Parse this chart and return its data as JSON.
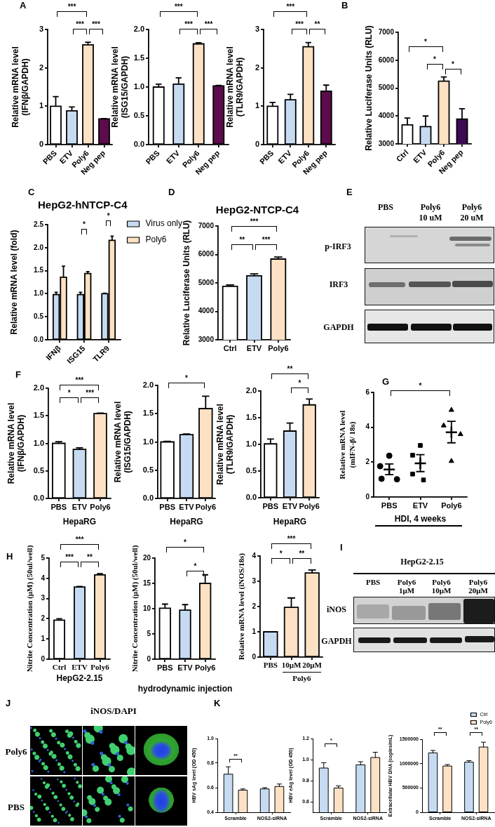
{
  "chart_data": [
    {
      "type": "bar",
      "categories": [
        "PBS",
        "ETV",
        "Poly6",
        "Neg pep"
      ],
      "values": [
        1.0,
        0.88,
        2.6,
        0.67
      ],
      "colors": [
        "#ffffff",
        "#c6dbf2",
        "#fde1c4",
        "#5c0b4c"
      ],
      "errors": [
        [
          1.0,
          1.25
        ],
        [
          0.88,
          0.98
        ],
        [
          2.6,
          2.67
        ],
        [
          0.67,
          0.68
        ]
      ],
      "ylabel": "Relative mRNA level (IFNβ/GAPDH)",
      "ylim": [
        0,
        3
      ],
      "yticks": [
        0,
        1,
        2,
        3
      ],
      "annotations": [
        "A",
        "***",
        "***",
        "***"
      ]
    },
    {
      "type": "bar",
      "categories": [
        "PBS",
        "ETV",
        "Poly6",
        "Neg pep"
      ],
      "values": [
        1.0,
        1.05,
        1.75,
        1.02
      ],
      "colors": [
        "#ffffff",
        "#c6dbf2",
        "#fde1c4",
        "#5c0b4c"
      ],
      "errors": [
        [
          1.0,
          1.05
        ],
        [
          1.05,
          1.16
        ],
        [
          1.75,
          1.77
        ],
        [
          1.02,
          1.03
        ]
      ],
      "ylabel": "Relative mRNA level (ISG15/GAPDH)",
      "ylim": [
        0,
        2
      ],
      "yticks": [
        {
          "value": 0,
          "label": "0.0"
        },
        0.5,
        {
          "value": 1,
          "label": "1.0"
        },
        1.5,
        {
          "value": 2,
          "label": "2.0"
        }
      ],
      "annotations": [
        "***",
        "***",
        "***"
      ]
    },
    {
      "type": "bar",
      "categories": [
        "PBS",
        "ETV",
        "Poly6",
        "Neg pep"
      ],
      "values": [
        1.0,
        1.17,
        2.55,
        1.39
      ],
      "colors": [
        "#ffffff",
        "#c6dbf2",
        "#fde1c4",
        "#5c0b4c"
      ],
      "errors": [
        [
          1.0,
          1.1
        ],
        [
          1.17,
          1.31
        ],
        [
          2.55,
          2.66
        ],
        [
          1.39,
          1.55
        ]
      ],
      "ylabel": "Relative mRNA level (TLR9/GAPDH)",
      "ylim": [
        0,
        3
      ],
      "yticks": [
        0,
        1,
        2,
        3
      ],
      "annotations": [
        "***",
        "***",
        "**"
      ]
    },
    {
      "type": "bar",
      "categories": [
        "Ctrl",
        "ETV",
        "Poly6",
        "Neg pep"
      ],
      "values": [
        3680,
        3620,
        5250,
        3890
      ],
      "colors": [
        "#ffffff",
        "#c6dbf2",
        "#fde1c4",
        "#3d0b54"
      ],
      "errors": [
        [
          3680,
          3930
        ],
        [
          3620,
          4000
        ],
        [
          5250,
          5400
        ],
        [
          3890,
          4260
        ]
      ],
      "ylabel": "Relative Luciferase Units (RLU)",
      "ylim": [
        3000,
        7000
      ],
      "yticks": [
        3000,
        4000,
        5000,
        6000,
        7000
      ],
      "annotations": [
        "B",
        "*",
        "*",
        "*"
      ]
    },
    {
      "type": "bar",
      "title": "HepG2-hNTCP-C4",
      "categories": [
        "IFNβ",
        "ISG15",
        "TLR9"
      ],
      "series": [
        {
          "name": "Virus only",
          "color": "#c6dbf2",
          "values": [
            0.98,
            0.98,
            1.0
          ],
          "errors": [
            [
              0.98,
              1.03
            ],
            [
              0.98,
              1.03
            ],
            [
              1.0,
              1.01
            ]
          ]
        },
        {
          "name": "Poly6",
          "color": "#fde1c4",
          "values": [
            1.36,
            1.44,
            2.16
          ],
          "errors": [
            [
              1.36,
              1.6
            ],
            [
              1.44,
              1.48
            ],
            [
              2.16,
              2.25
            ]
          ]
        }
      ],
      "ylabel": "Relative mRNA level (fold)",
      "ylim": [
        0,
        2.5
      ],
      "yticks": [
        {
          "value": 0,
          "label": "0.0"
        },
        0.5,
        {
          "value": 1,
          "label": "1.0"
        },
        1.5,
        {
          "value": 2,
          "label": "2.0"
        },
        2.5
      ],
      "legend": "top right",
      "annotations": [
        "C",
        "*",
        "*"
      ]
    },
    {
      "type": "bar",
      "title": "HepG2-NTCP-C4",
      "categories": [
        "Ctrl",
        "ETV",
        "Poly6"
      ],
      "values": [
        4880,
        5250,
        5840
      ],
      "colors": [
        "#ffffff",
        "#c6dbf2",
        "#fde1c4"
      ],
      "errors": [
        [
          4880,
          4930
        ],
        [
          5250,
          5320
        ],
        [
          5840,
          5910
        ]
      ],
      "ylabel": "Relative Luciferase Units (RLU)",
      "ylim": [
        3000,
        7000
      ],
      "yticks": [
        3000,
        4000,
        5000,
        6000,
        7000
      ],
      "annotations": [
        "D",
        "***",
        "**",
        "***"
      ]
    },
    {
      "type": "other",
      "annotations": [
        "E",
        "PBS",
        "Poly6 10 uM",
        "Poly6 20 uM",
        "p-IRF3",
        "IRF3",
        "GAPDH"
      ]
    },
    {
      "type": "bar",
      "categories": [
        "PBS",
        "ETV",
        "Poly6"
      ],
      "values": [
        1.0,
        0.89,
        1.54
      ],
      "colors": [
        "#ffffff",
        "#c6dbf2",
        "#fde1c4"
      ],
      "errors": [
        [
          1.0,
          1.03
        ],
        [
          0.89,
          0.92
        ],
        [
          1.54,
          1.55
        ]
      ],
      "ylabel": "Relative mRNA level (IFNβ/GAPDH)",
      "xlabel": "HepaRG",
      "ylim": [
        0,
        2
      ],
      "yticks": [
        {
          "value": 0,
          "label": "0.0"
        },
        0.5,
        {
          "value": 1,
          "label": "1.0"
        },
        1.5,
        {
          "value": 2,
          "label": "2.0"
        }
      ],
      "annotations": [
        "F",
        "***",
        "*",
        "***"
      ]
    },
    {
      "type": "bar",
      "categories": [
        "PBS",
        "ETV",
        "Poly6"
      ],
      "values": [
        1.0,
        1.13,
        1.59
      ],
      "colors": [
        "#ffffff",
        "#c6dbf2",
        "#fde1c4"
      ],
      "errors": [
        [
          1.0,
          1.01
        ],
        [
          1.13,
          1.14
        ],
        [
          1.59,
          1.81
        ]
      ],
      "ylabel": "Relative mRNA level (ISG15/GAPDH)",
      "xlabel": "HepaRG",
      "ylim": [
        0,
        2
      ],
      "yticks": [
        {
          "value": 0,
          "label": "0.0"
        },
        0.5,
        {
          "value": 1,
          "label": "1.0"
        },
        1.5,
        {
          "value": 2,
          "label": "2.0"
        }
      ],
      "annotations": [
        "*"
      ]
    },
    {
      "type": "bar",
      "categories": [
        "PBS",
        "ETV",
        "Poly6"
      ],
      "values": [
        1.01,
        1.25,
        1.74
      ],
      "colors": [
        "#ffffff",
        "#c6dbf2",
        "#fde1c4"
      ],
      "errors": [
        [
          1.01,
          1.1
        ],
        [
          1.25,
          1.4
        ],
        [
          1.74,
          1.85
        ]
      ],
      "ylabel": "Relative mRNA level (TLR9/GAPDH)",
      "xlabel": "HepaRG",
      "ylim": [
        0,
        2
      ],
      "yticks": [
        {
          "value": 0,
          "label": "0.0"
        },
        0.5,
        {
          "value": 1,
          "label": "1.0"
        },
        1.5,
        {
          "value": 2,
          "label": "2.0"
        }
      ],
      "annotations": [
        "**",
        "*"
      ]
    },
    {
      "type": "scatter",
      "categories": [
        "PBS",
        "ETV",
        "Poly6"
      ],
      "series": [
        {
          "type": "scatter",
          "x": [
            "PBS",
            "PBS",
            "PBS",
            "PBS"
          ],
          "values": [
            2.37,
            1.77,
            1.05,
            1.02
          ],
          "color": "#000000",
          "marker": "circle"
        },
        {
          "type": "scatter",
          "x": [
            "ETV",
            "ETV",
            "ETV",
            "ETV"
          ],
          "values": [
            2.96,
            2.4,
            1.32,
            0.98
          ],
          "color": "#000000",
          "marker": "square"
        },
        {
          "type": "scatter",
          "x": [
            "Poly6",
            "Poly6",
            "Poly6",
            "Poly6"
          ],
          "values": [
            4.99,
            4.1,
            3.6,
            2.06
          ],
          "color": "#000000",
          "marker": "triangle"
        },
        {
          "type": "scatter",
          "x": [
            "PBS",
            "ETV",
            "Poly6"
          ],
          "values": [
            1.58,
            1.93,
            3.71
          ],
          "errors": [
            [
              1.28,
              1.9
            ],
            [
              1.46,
              2.43
            ],
            [
              3.11,
              4.34
            ]
          ],
          "color": "#000000",
          "marker": "cross"
        }
      ],
      "ylabel": "Relative mRNA level (mIFN-β/ 18s)",
      "xlabel": "HDI, 4 weeks",
      "ylim": [
        0,
        6
      ],
      "yticks": [
        0,
        2,
        4,
        6
      ],
      "annotations": [
        "G",
        "*"
      ]
    },
    {
      "type": "bar",
      "categories": [
        "Ctrl",
        "ETV",
        "Poly6"
      ],
      "values": [
        1.93,
        3.57,
        4.17
      ],
      "colors": [
        "#ffffff",
        "#c6dbf2",
        "#fde1c4"
      ],
      "errors": [
        [
          1.93,
          2.0
        ],
        [
          3.57,
          3.6
        ],
        [
          4.17,
          4.23
        ]
      ],
      "ylabel": "Nitrite Concentration (μM) (50ul/well)",
      "xlabel": "HepG2-2.15",
      "ylim": [
        0,
        5
      ],
      "yticks": [
        0,
        1,
        2,
        3,
        4,
        5
      ],
      "annotations": [
        "H",
        "***",
        "***",
        "**"
      ]
    },
    {
      "type": "bar",
      "categories": [
        "PBS",
        "ETV",
        "Poly6"
      ],
      "values": [
        10.1,
        9.7,
        15.0
      ],
      "colors": [
        "#ffffff",
        "#c6dbf2",
        "#fde1c4"
      ],
      "errors": [
        [
          10.1,
          10.9
        ],
        [
          9.7,
          10.8
        ],
        [
          15.0,
          16.7
        ]
      ],
      "ylabel": "Nitrite Concentration (μM) (50ul/well)",
      "xlabel": "hydrodynamic injection",
      "ylim": [
        0,
        20
      ],
      "yticks": [
        0,
        5,
        10,
        15,
        20
      ],
      "annotations": [
        "*",
        "*"
      ]
    },
    {
      "type": "bar",
      "categories": [
        "PBS",
        "10μM",
        "20μM"
      ],
      "values": [
        1.0,
        1.97,
        3.33
      ],
      "colors": [
        "#c6dbf2",
        "#fde1c4",
        "#fde1c4"
      ],
      "errors": [
        null,
        [
          1.97,
          2.34
        ],
        [
          3.33,
          3.45
        ]
      ],
      "ylabel": "Relative mRNA level (iNOS/18s)",
      "ylim": [
        0,
        4
      ],
      "yticks": [
        0,
        1,
        2,
        3,
        4
      ],
      "annotations": [
        "***",
        "*",
        "**",
        "Poly6"
      ]
    },
    {
      "type": "other",
      "annotations": [
        "I",
        "HepG2-2.15",
        "PBS",
        "Poly6 1μM",
        "Poly6 10μM",
        "Poly6 20μM",
        "iNOS",
        "GAPDH"
      ]
    },
    {
      "type": "other",
      "annotations": [
        "J",
        "iNOS/DAPI",
        "Poly6",
        "PBS"
      ]
    },
    {
      "type": "bar",
      "categories": [
        "Scramble",
        "NOS2-siRNA"
      ],
      "series": [
        {
          "color": "#c6dbf2",
          "values": [
            0.71,
            0.59
          ],
          "errors": [
            [
              0.71,
              0.77
            ],
            [
              0.59,
              0.6
            ]
          ]
        },
        {
          "color": "#fde1c4",
          "values": [
            0.58,
            0.61
          ],
          "errors": [
            [
              0.58,
              0.59
            ],
            [
              0.61,
              0.63
            ]
          ]
        }
      ],
      "ylabel": "HBV sAg level (OD 450)",
      "ylim": [
        0.4,
        1.0
      ],
      "yticks": [
        0.4,
        0.6,
        0.8,
        {
          "value": 1,
          "label": "1.0"
        }
      ],
      "annotations": [
        "K",
        "**"
      ]
    },
    {
      "type": "bar",
      "categories": [
        "Scramble",
        "NOS2-siRNA"
      ],
      "series": [
        {
          "color": "#c6dbf2",
          "values": [
            0.92,
            0.95
          ],
          "errors": [
            [
              0.92,
              0.97
            ],
            [
              0.95,
              0.98
            ]
          ]
        },
        {
          "color": "#fde1c4",
          "values": [
            0.73,
            1.02
          ],
          "errors": [
            [
              0.73,
              0.75
            ],
            [
              1.02,
              1.07
            ]
          ]
        }
      ],
      "ylabel": "HBV eAg level (OD 450)",
      "ylim": [
        0.5,
        1.2
      ],
      "yticks": [
        0.6,
        0.8,
        {
          "value": 1,
          "label": "1.0"
        },
        1.2
      ],
      "annotations": [
        "*"
      ]
    },
    {
      "type": "bar",
      "categories": [
        "Scramble",
        "NOS2-siRNA"
      ],
      "series": [
        {
          "name": "Ctrl",
          "color": "#c6dbf2",
          "values": [
            1220000,
            1030000
          ],
          "errors": [
            [
              1220000,
              1270000
            ],
            [
              1030000,
              1060000
            ]
          ]
        },
        {
          "name": "Poly6",
          "color": "#fde1c4",
          "values": [
            950000,
            1340000
          ],
          "errors": [
            [
              950000,
              980000
            ],
            [
              1340000,
              1440000
            ]
          ]
        }
      ],
      "ylabel": "Extracellular HBV DNA (copies/mL)",
      "ylim": [
        0,
        1500000
      ],
      "yticks": [
        0,
        500000,
        1000000,
        1500000
      ],
      "legend": "top right",
      "annotations": [
        "**",
        "**"
      ]
    }
  ]
}
